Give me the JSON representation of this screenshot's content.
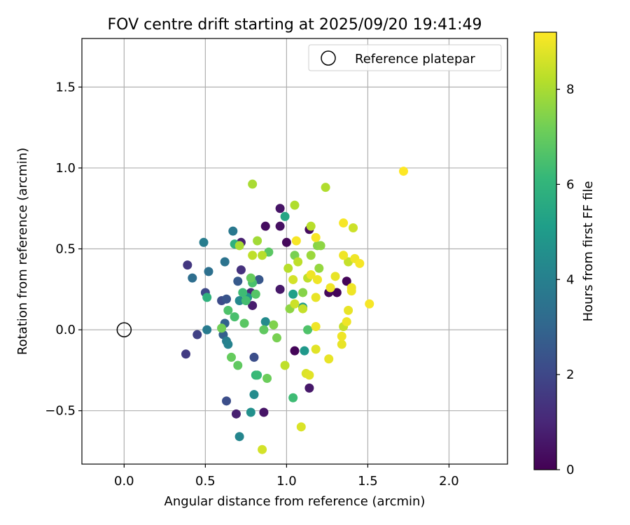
{
  "chart_data": {
    "type": "scatter",
    "title": "FOV centre drift starting at 2025/09/20 19:41:49",
    "xlabel": "Angular distance from reference (arcmin)",
    "ylabel": "Rotation from reference (arcmin)",
    "xlim": [
      -0.26,
      2.36
    ],
    "ylim": [
      -0.83,
      1.8
    ],
    "xticks": [
      0.0,
      0.5,
      1.0,
      1.5,
      2.0
    ],
    "xtick_labels": [
      "0.0",
      "0.5",
      "1.0",
      "1.5",
      "2.0"
    ],
    "yticks": [
      -0.5,
      0.0,
      0.5,
      1.0,
      1.5
    ],
    "ytick_labels": [
      "−0.5",
      "0.0",
      "0.5",
      "1.0",
      "1.5"
    ],
    "grid": true,
    "legend": {
      "label": "Reference platepar",
      "location": "top-right"
    },
    "reference": {
      "x": 0.0,
      "y": 0.0
    },
    "colorbar": {
      "label": "Hours from first FF file",
      "range": [
        0,
        9.2
      ],
      "ticks": [
        0,
        2,
        4,
        6,
        8
      ],
      "tick_labels": [
        "0",
        "2",
        "4",
        "6",
        "8"
      ],
      "colormap": [
        "#440154",
        "#482878",
        "#3e4989",
        "#31688e",
        "#26828e",
        "#1f9e89",
        "#35b779",
        "#6ece58",
        "#b5de2b",
        "#fde725"
      ]
    },
    "points": [
      {
        "x": 0.87,
        "y": 0.64,
        "h": 0.3
      },
      {
        "x": 0.96,
        "y": 0.75,
        "h": 0.5
      },
      {
        "x": 0.96,
        "y": 0.64,
        "h": 0.4
      },
      {
        "x": 1.0,
        "y": 0.54,
        "h": 0.2
      },
      {
        "x": 1.14,
        "y": 0.62,
        "h": 0.3
      },
      {
        "x": 1.37,
        "y": 0.3,
        "h": 0.1
      },
      {
        "x": 1.26,
        "y": 0.23,
        "h": 0.2
      },
      {
        "x": 1.31,
        "y": 0.23,
        "h": 0.1
      },
      {
        "x": 1.05,
        "y": -0.13,
        "h": 0.1
      },
      {
        "x": 0.96,
        "y": 0.25,
        "h": 0.6
      },
      {
        "x": 0.79,
        "y": 0.15,
        "h": 0.7
      },
      {
        "x": 0.72,
        "y": 0.54,
        "h": 0.8
      },
      {
        "x": 1.14,
        "y": -0.36,
        "h": 0.6
      },
      {
        "x": 0.86,
        "y": -0.51,
        "h": 0.5
      },
      {
        "x": 0.69,
        "y": -0.52,
        "h": 0.8
      },
      {
        "x": 0.78,
        "y": 0.23,
        "h": 1.0
      },
      {
        "x": 0.72,
        "y": 0.37,
        "h": 1.3
      },
      {
        "x": 0.39,
        "y": 0.4,
        "h": 1.5
      },
      {
        "x": 0.38,
        "y": -0.15,
        "h": 1.6
      },
      {
        "x": 0.45,
        "y": -0.03,
        "h": 1.8
      },
      {
        "x": 0.63,
        "y": -0.44,
        "h": 2.2
      },
      {
        "x": 0.5,
        "y": 0.23,
        "h": 2.0
      },
      {
        "x": 0.6,
        "y": 0.18,
        "h": 2.1
      },
      {
        "x": 0.63,
        "y": 0.19,
        "h": 2.4
      },
      {
        "x": 0.8,
        "y": -0.17,
        "h": 2.2
      },
      {
        "x": 0.83,
        "y": 0.31,
        "h": 2.5
      },
      {
        "x": 0.7,
        "y": 0.3,
        "h": 2.6
      },
      {
        "x": 0.61,
        "y": -0.03,
        "h": 2.8
      },
      {
        "x": 0.62,
        "y": 0.04,
        "h": 2.9
      },
      {
        "x": 0.42,
        "y": 0.32,
        "h": 3.3
      },
      {
        "x": 0.52,
        "y": 0.36,
        "h": 3.4
      },
      {
        "x": 0.62,
        "y": 0.42,
        "h": 3.5
      },
      {
        "x": 0.67,
        "y": 0.61,
        "h": 3.7
      },
      {
        "x": 0.49,
        "y": 0.54,
        "h": 3.9
      },
      {
        "x": 0.51,
        "y": 0.0,
        "h": 3.8
      },
      {
        "x": 0.63,
        "y": -0.07,
        "h": 3.9
      },
      {
        "x": 0.64,
        "y": -0.09,
        "h": 4.1
      },
      {
        "x": 0.71,
        "y": 0.18,
        "h": 4.3
      },
      {
        "x": 0.71,
        "y": -0.66,
        "h": 4.2
      },
      {
        "x": 0.78,
        "y": -0.51,
        "h": 4.6
      },
      {
        "x": 0.8,
        "y": -0.4,
        "h": 4.4
      },
      {
        "x": 0.87,
        "y": 0.05,
        "h": 4.4
      },
      {
        "x": 0.76,
        "y": 0.2,
        "h": 4.7
      },
      {
        "x": 1.11,
        "y": -0.13,
        "h": 4.9
      },
      {
        "x": 1.1,
        "y": 0.14,
        "h": 5.0
      },
      {
        "x": 1.04,
        "y": 0.22,
        "h": 5.2
      },
      {
        "x": 0.99,
        "y": 0.7,
        "h": 5.4
      },
      {
        "x": 0.68,
        "y": 0.53,
        "h": 5.8
      },
      {
        "x": 0.51,
        "y": 0.2,
        "h": 5.9
      },
      {
        "x": 0.81,
        "y": -0.28,
        "h": 6.0
      },
      {
        "x": 0.82,
        "y": -0.28,
        "h": 6.2
      },
      {
        "x": 0.73,
        "y": 0.23,
        "h": 6.3
      },
      {
        "x": 0.75,
        "y": 0.18,
        "h": 6.4
      },
      {
        "x": 0.79,
        "y": 0.29,
        "h": 6.5
      },
      {
        "x": 0.68,
        "y": 0.08,
        "h": 6.5
      },
      {
        "x": 0.64,
        "y": 0.12,
        "h": 6.6
      },
      {
        "x": 1.04,
        "y": -0.42,
        "h": 6.3
      },
      {
        "x": 1.13,
        "y": 0.0,
        "h": 6.6
      },
      {
        "x": 0.74,
        "y": 0.04,
        "h": 6.8
      },
      {
        "x": 0.86,
        "y": 0.0,
        "h": 6.9
      },
      {
        "x": 0.89,
        "y": 0.48,
        "h": 6.8
      },
      {
        "x": 0.81,
        "y": 0.22,
        "h": 6.7
      },
      {
        "x": 0.7,
        "y": -0.22,
        "h": 6.9
      },
      {
        "x": 0.66,
        "y": -0.17,
        "h": 7.0
      },
      {
        "x": 0.88,
        "y": -0.3,
        "h": 7.1
      },
      {
        "x": 0.6,
        "y": 0.01,
        "h": 7.2
      },
      {
        "x": 0.78,
        "y": 0.32,
        "h": 7.0
      },
      {
        "x": 0.94,
        "y": -0.05,
        "h": 7.3
      },
      {
        "x": 0.92,
        "y": 0.03,
        "h": 7.4
      },
      {
        "x": 1.05,
        "y": 0.46,
        "h": 7.3
      },
      {
        "x": 1.1,
        "y": 0.23,
        "h": 7.5
      },
      {
        "x": 1.02,
        "y": 0.13,
        "h": 7.6
      },
      {
        "x": 1.19,
        "y": 0.52,
        "h": 7.5
      },
      {
        "x": 1.21,
        "y": 0.52,
        "h": 7.6
      },
      {
        "x": 1.2,
        "y": 0.38,
        "h": 7.7
      },
      {
        "x": 1.15,
        "y": 0.46,
        "h": 7.8
      },
      {
        "x": 0.82,
        "y": 0.55,
        "h": 7.9
      },
      {
        "x": 0.71,
        "y": 0.52,
        "h": 8.0
      },
      {
        "x": 0.79,
        "y": 0.9,
        "h": 8.0
      },
      {
        "x": 1.05,
        "y": 0.77,
        "h": 8.1
      },
      {
        "x": 1.24,
        "y": 0.88,
        "h": 8.1
      },
      {
        "x": 1.15,
        "y": 0.64,
        "h": 8.2
      },
      {
        "x": 1.01,
        "y": 0.38,
        "h": 8.2
      },
      {
        "x": 1.07,
        "y": 0.42,
        "h": 8.3
      },
      {
        "x": 0.85,
        "y": 0.46,
        "h": 8.2
      },
      {
        "x": 0.79,
        "y": 0.46,
        "h": 8.3
      },
      {
        "x": 0.99,
        "y": -0.22,
        "h": 8.3
      },
      {
        "x": 1.1,
        "y": 0.13,
        "h": 8.4
      },
      {
        "x": 1.13,
        "y": 0.32,
        "h": 8.3
      },
      {
        "x": 1.35,
        "y": 0.02,
        "h": 8.4
      },
      {
        "x": 1.38,
        "y": 0.42,
        "h": 8.4
      },
      {
        "x": 1.41,
        "y": 0.63,
        "h": 8.5
      },
      {
        "x": 1.05,
        "y": 0.16,
        "h": 8.5
      },
      {
        "x": 1.04,
        "y": 0.31,
        "h": 8.6
      },
      {
        "x": 0.85,
        "y": -0.74,
        "h": 8.6
      },
      {
        "x": 1.09,
        "y": -0.6,
        "h": 8.7
      },
      {
        "x": 1.12,
        "y": -0.27,
        "h": 8.7
      },
      {
        "x": 1.14,
        "y": -0.28,
        "h": 8.8
      },
      {
        "x": 1.18,
        "y": -0.12,
        "h": 8.8
      },
      {
        "x": 1.26,
        "y": -0.18,
        "h": 8.9
      },
      {
        "x": 1.34,
        "y": -0.09,
        "h": 8.9
      },
      {
        "x": 1.34,
        "y": -0.04,
        "h": 9.0
      },
      {
        "x": 1.18,
        "y": 0.02,
        "h": 9.0
      },
      {
        "x": 1.18,
        "y": 0.2,
        "h": 8.9
      },
      {
        "x": 1.19,
        "y": 0.31,
        "h": 9.0
      },
      {
        "x": 1.15,
        "y": 0.34,
        "h": 9.0
      },
      {
        "x": 1.27,
        "y": 0.26,
        "h": 9.0
      },
      {
        "x": 1.3,
        "y": 0.33,
        "h": 8.9
      },
      {
        "x": 1.4,
        "y": 0.26,
        "h": 9.0
      },
      {
        "x": 1.4,
        "y": 0.24,
        "h": 9.0
      },
      {
        "x": 1.38,
        "y": 0.12,
        "h": 8.9
      },
      {
        "x": 1.37,
        "y": 0.05,
        "h": 9.0
      },
      {
        "x": 1.35,
        "y": 0.46,
        "h": 9.0
      },
      {
        "x": 1.42,
        "y": 0.44,
        "h": 9.0
      },
      {
        "x": 1.45,
        "y": 0.41,
        "h": 9.1
      },
      {
        "x": 1.35,
        "y": 0.66,
        "h": 9.1
      },
      {
        "x": 1.18,
        "y": 0.57,
        "h": 9.1
      },
      {
        "x": 1.51,
        "y": 0.16,
        "h": 9.1
      },
      {
        "x": 1.72,
        "y": 0.98,
        "h": 9.2
      },
      {
        "x": 1.06,
        "y": 0.55,
        "h": 9.1
      }
    ]
  }
}
